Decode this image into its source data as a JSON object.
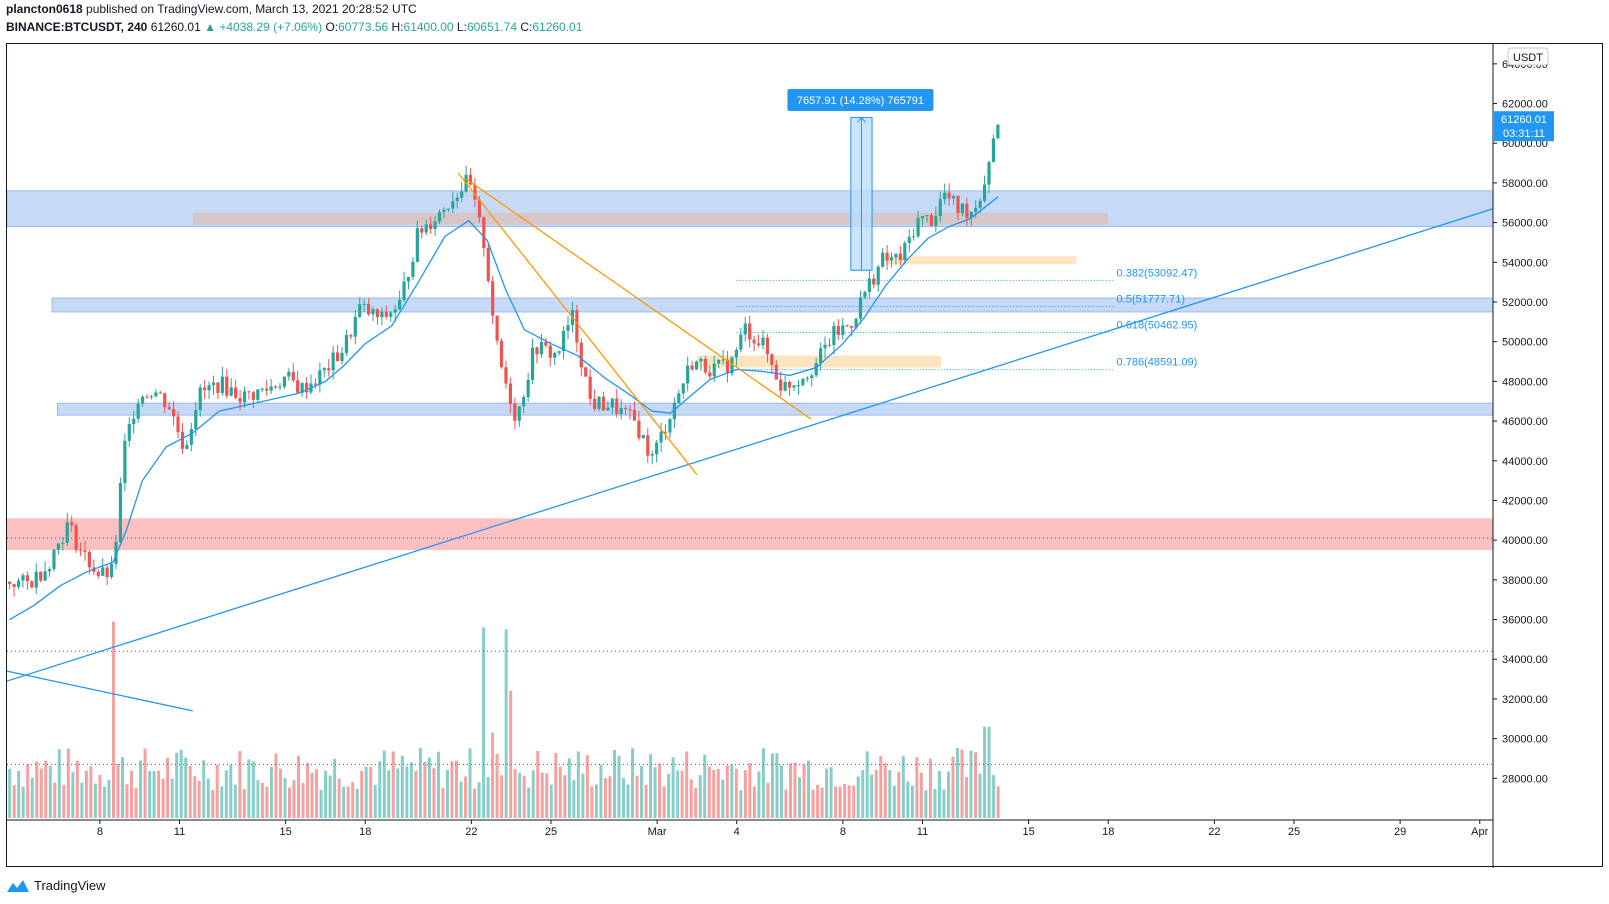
{
  "header": {
    "publisher": "plancton0618",
    "published_text": "published on TradingView.com, March 13, 2021 20:28:52 UTC",
    "symbol": "BINANCE:BTCUSDT, 240",
    "last": "61260.01",
    "change_arrow": "▲",
    "change": "+4038.29 (+7.06%)",
    "o_label": "O:",
    "o_val": "60773.56",
    "h_label": "H:",
    "h_val": "61400.00",
    "l_label": "L:",
    "l_val": "60651.74",
    "c_label": "C:",
    "c_val": "61260.01"
  },
  "footer": {
    "brand": "TradingView",
    "logo_icon": "tradingview-logo-icon"
  },
  "colors": {
    "up": "#26a69a",
    "down": "#ef5350",
    "ema": "#2196f3",
    "orange": "#ff9800",
    "zone_blue": "#bcd2f5",
    "zone_red": "#fbb5b6",
    "zone_orange": "#fddfb5",
    "zone_grey": "#d6c3c3",
    "price_tag": "#2196f3"
  },
  "chart_data": {
    "type": "candlestick",
    "currency_label": "USDT",
    "ylim": [
      26000,
      65000
    ],
    "y_ticks": [
      28000,
      30000,
      32000,
      34000,
      36000,
      38000,
      40000,
      42000,
      44000,
      46000,
      48000,
      50000,
      52000,
      54000,
      56000,
      58000,
      60000,
      62000,
      64000
    ],
    "x_ticks": [
      "8",
      "11",
      "15",
      "18",
      "22",
      "25",
      "Mar",
      "4",
      "8",
      "11",
      "15",
      "18",
      "22",
      "25",
      "29",
      "Apr"
    ],
    "x_tick_days": [
      8,
      11,
      15,
      18,
      22,
      25,
      29,
      32,
      36,
      39,
      43,
      46,
      50,
      53,
      57,
      60
    ],
    "x_range_days": [
      4.5,
      60.5
    ],
    "last_date_day": 41.85,
    "price_tag": {
      "value": "61260.01",
      "countdown": "03:31:11"
    },
    "price_path": [
      [
        4.6,
        37900
      ],
      [
        5.3,
        37800
      ],
      [
        6.0,
        38700
      ],
      [
        6.8,
        40800
      ],
      [
        7.3,
        39400
      ],
      [
        8.0,
        38200
      ],
      [
        8.5,
        38400
      ],
      [
        8.9,
        44500
      ],
      [
        9.4,
        47200
      ],
      [
        10.0,
        47600
      ],
      [
        10.6,
        46800
      ],
      [
        11.2,
        44600
      ],
      [
        11.7,
        47300
      ],
      [
        12.5,
        47900
      ],
      [
        13.4,
        47200
      ],
      [
        14.3,
        47600
      ],
      [
        15.0,
        48200
      ],
      [
        15.6,
        47600
      ],
      [
        16.4,
        48400
      ],
      [
        17.2,
        49700
      ],
      [
        17.8,
        51700
      ],
      [
        18.6,
        51100
      ],
      [
        19.3,
        51900
      ],
      [
        20.0,
        55500
      ],
      [
        20.8,
        56500
      ],
      [
        21.5,
        57600
      ],
      [
        21.9,
        58100
      ],
      [
        22.5,
        54800
      ],
      [
        23.0,
        49300
      ],
      [
        23.7,
        46100
      ],
      [
        24.4,
        49800
      ],
      [
        25.2,
        49300
      ],
      [
        25.8,
        51300
      ],
      [
        26.5,
        46900
      ],
      [
        27.3,
        46800
      ],
      [
        28.2,
        45900
      ],
      [
        28.8,
        44100
      ],
      [
        29.5,
        46400
      ],
      [
        30.3,
        49000
      ],
      [
        31.2,
        48600
      ],
      [
        31.8,
        48900
      ],
      [
        32.3,
        50700
      ],
      [
        33.0,
        49800
      ],
      [
        33.7,
        47700
      ],
      [
        34.3,
        48100
      ],
      [
        35.0,
        48900
      ],
      [
        35.6,
        50300
      ],
      [
        36.3,
        50900
      ],
      [
        36.9,
        52700
      ],
      [
        37.5,
        54100
      ],
      [
        38.2,
        54200
      ],
      [
        38.8,
        56100
      ],
      [
        39.4,
        56200
      ],
      [
        39.8,
        57500
      ],
      [
        40.3,
        56700
      ],
      [
        40.9,
        56600
      ],
      [
        41.3,
        57800
      ],
      [
        41.6,
        59900
      ],
      [
        41.85,
        61260
      ]
    ],
    "ema_path": [
      [
        4.6,
        36000
      ],
      [
        5.5,
        36700
      ],
      [
        6.5,
        37700
      ],
      [
        7.5,
        38400
      ],
      [
        8.5,
        38900
      ],
      [
        9.0,
        40500
      ],
      [
        9.6,
        43000
      ],
      [
        10.5,
        44700
      ],
      [
        11.5,
        45400
      ],
      [
        12.5,
        46500
      ],
      [
        13.5,
        46800
      ],
      [
        14.5,
        47100
      ],
      [
        15.5,
        47400
      ],
      [
        16.5,
        48000
      ],
      [
        17.2,
        48800
      ],
      [
        18.0,
        49900
      ],
      [
        19.0,
        50800
      ],
      [
        20.0,
        53000
      ],
      [
        21.0,
        55300
      ],
      [
        21.9,
        56100
      ],
      [
        22.6,
        55100
      ],
      [
        23.3,
        52600
      ],
      [
        24.0,
        50600
      ],
      [
        25.0,
        49900
      ],
      [
        26.0,
        49300
      ],
      [
        27.0,
        48200
      ],
      [
        28.0,
        47300
      ],
      [
        28.8,
        46500
      ],
      [
        29.5,
        46400
      ],
      [
        30.2,
        47200
      ],
      [
        31.0,
        48100
      ],
      [
        32.0,
        48600
      ],
      [
        33.0,
        48500
      ],
      [
        34.0,
        48300
      ],
      [
        35.0,
        48700
      ],
      [
        36.0,
        49900
      ],
      [
        36.8,
        51200
      ],
      [
        37.6,
        52800
      ],
      [
        38.4,
        54100
      ],
      [
        39.2,
        55200
      ],
      [
        40.0,
        55800
      ],
      [
        40.8,
        56200
      ],
      [
        41.85,
        57300
      ]
    ],
    "volume_scale_max": 36000,
    "volume_baseline": 26000,
    "volume_spikes": [
      [
        8.55,
        35900
      ],
      [
        22.5,
        35600
      ],
      [
        23.3,
        35500
      ],
      [
        23.45,
        32400
      ],
      [
        22.8,
        30300
      ],
      [
        41.4,
        30600
      ]
    ],
    "fib_levels": [
      {
        "label": "0.382(53092.47)",
        "value": 53092.47
      },
      {
        "label": "0.5(51777.71)",
        "value": 51777.71
      },
      {
        "label": "0.618(50462.95)",
        "value": 50462.95
      },
      {
        "label": "0.786(48591.09)",
        "value": 48591.09
      }
    ],
    "fib_x_range_days": [
      32.0,
      46.2
    ],
    "zones": [
      {
        "kind": "blue",
        "x": [
          4.5,
          60.5
        ],
        "y": [
          55800,
          57600
        ]
      },
      {
        "kind": "grey",
        "x": [
          11.5,
          46.0
        ],
        "y": [
          55900,
          56500
        ]
      },
      {
        "kind": "blue",
        "x": [
          6.2,
          60.5
        ],
        "y": [
          51500,
          52200
        ]
      },
      {
        "kind": "blue",
        "x": [
          6.4,
          60.5
        ],
        "y": [
          46300,
          46900
        ]
      },
      {
        "kind": "red",
        "x": [
          4.5,
          60.5
        ],
        "y": [
          39500,
          41100
        ]
      },
      {
        "kind": "orange",
        "x": [
          37.6,
          44.8
        ],
        "y": [
          53900,
          54300
        ]
      },
      {
        "kind": "orange",
        "x": [
          30.5,
          39.7
        ],
        "y": [
          48700,
          49300
        ]
      }
    ],
    "dotted_lines": [
      40100,
      34400,
      28700
    ],
    "trend_lines": [
      {
        "color": "ema",
        "p1": [
          4.5,
          32900
        ],
        "p2": [
          60.5,
          56700
        ]
      },
      {
        "color": "ema",
        "p1": [
          4.5,
          33400
        ],
        "p2": [
          11.5,
          31400
        ]
      },
      {
        "color": "orange",
        "p1": [
          21.5,
          58500
        ],
        "p2": [
          30.5,
          43300
        ]
      },
      {
        "color": "orange",
        "p1": [
          21.8,
          58200
        ],
        "p2": [
          34.8,
          46100
        ]
      }
    ],
    "measure": {
      "label": "7657.91 (14.28%) 765791",
      "x": [
        36.3,
        37.1
      ],
      "y": [
        53600,
        61300
      ]
    },
    "grid": false,
    "legend": "none"
  }
}
